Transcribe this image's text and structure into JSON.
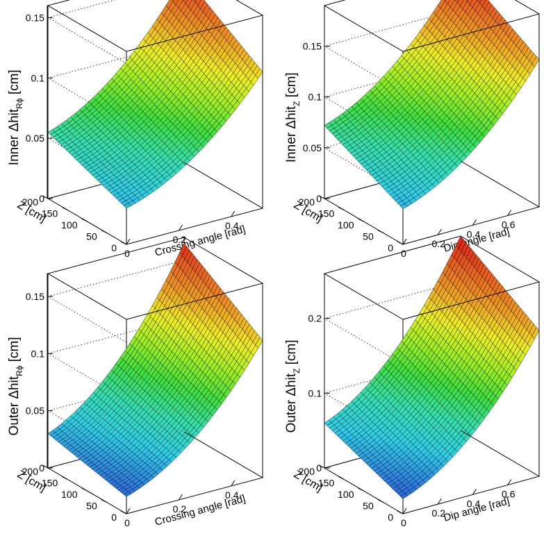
{
  "chart_data": [
    {
      "type": "surface",
      "title": "",
      "zlabel": {
        "prefix": "Inner ",
        "delta": "Δ",
        "base": "hit",
        "sub": "Rϕ",
        "unit": " [cm]"
      },
      "xlabel": "Crossing angle [rad]",
      "ylabel": "Z [cm]",
      "xlim": [
        0,
        0.52
      ],
      "ylim": [
        0,
        200
      ],
      "zlim": [
        0,
        0.16
      ],
      "xticks": [
        "0",
        "0.2",
        "0.4"
      ],
      "xtick_values": [
        0,
        0.2,
        0.4
      ],
      "yticks": [
        "0",
        "50",
        "100",
        "150",
        "200"
      ],
      "ytick_values": [
        0,
        50,
        100,
        150,
        200
      ],
      "zticks": [
        "0",
        "0.05",
        "0.1",
        "0.15"
      ],
      "ztick_values": [
        0,
        0.05,
        0.1,
        0.15
      ],
      "surface": {
        "x_range": [
          0,
          0.52
        ],
        "y_range": [
          0,
          200
        ],
        "nx": 30,
        "ny": 30,
        "corner_values": {
          "x0_y0": 0.03,
          "x0_y200": 0.055,
          "xmax_y0": 0.113,
          "xmax_y200": 0.155
        },
        "curvature_x": "quadratic"
      }
    },
    {
      "type": "surface",
      "title": "",
      "zlabel": {
        "prefix": "Inner ",
        "delta": "Δ",
        "base": "hit",
        "sub": "Z",
        "unit": " [cm]"
      },
      "xlabel": "Dip angle [rad]",
      "ylabel": "Z [cm]",
      "xlim": [
        0,
        0.78
      ],
      "ylim": [
        0,
        200
      ],
      "zlim": [
        0,
        0.19
      ],
      "xticks": [
        "0",
        "0.2",
        "0.4",
        "0.6"
      ],
      "xtick_values": [
        0,
        0.2,
        0.4,
        0.6
      ],
      "yticks": [
        "0",
        "50",
        "100",
        "150",
        "200"
      ],
      "ytick_values": [
        0,
        50,
        100,
        150,
        200
      ],
      "zticks": [
        "0",
        "0.05",
        "0.1",
        "0.15"
      ],
      "ztick_values": [
        0,
        0.05,
        0.1,
        0.15
      ],
      "surface": {
        "x_range": [
          0,
          0.78
        ],
        "y_range": [
          0,
          200
        ],
        "nx": 30,
        "ny": 30,
        "corner_values": {
          "x0_y0": 0.035,
          "x0_y200": 0.072,
          "xmax_y0": 0.145,
          "xmax_y200": 0.19
        },
        "curvature_x": "quadratic"
      }
    },
    {
      "type": "surface",
      "title": "",
      "zlabel": {
        "prefix": "Outer ",
        "delta": "Δ",
        "base": "hit",
        "sub": "Rϕ",
        "unit": " [cm]"
      },
      "xlabel": "Crossing angle [rad]",
      "ylabel": "Z [cm]",
      "xlim": [
        0,
        0.52
      ],
      "ylim": [
        0,
        200
      ],
      "zlim": [
        0,
        0.17
      ],
      "xticks": [
        "0",
        "0.2",
        "0.4"
      ],
      "xtick_values": [
        0,
        0.2,
        0.4
      ],
      "yticks": [
        "0",
        "50",
        "100",
        "150",
        "200"
      ],
      "ytick_values": [
        0,
        50,
        100,
        150,
        200
      ],
      "zticks": [
        "0",
        "0.05",
        "0.1",
        "0.15"
      ],
      "zticks_values_note": "",
      "ztick_values": [
        0,
        0.05,
        0.1,
        0.15
      ],
      "surface": {
        "x_range": [
          0,
          0.52
        ],
        "y_range": [
          0,
          200
        ],
        "nx": 30,
        "ny": 30,
        "corner_values": {
          "x0_y0": 0.015,
          "x0_y200": 0.03,
          "xmax_y0": 0.12,
          "xmax_y200": 0.165
        },
        "curvature_x": "quadratic"
      }
    },
    {
      "type": "surface",
      "title": "",
      "zlabel": {
        "prefix": "Outer ",
        "delta": "Δ",
        "base": "hit",
        "sub": "Z",
        "unit": " [cm]"
      },
      "xlabel": "Dip angle [rad]",
      "ylabel": "Z [cm]",
      "xlim": [
        0,
        0.78
      ],
      "ylim": [
        0,
        200
      ],
      "zlim": [
        0,
        0.26
      ],
      "xticks": [
        "0",
        "0.2",
        "0.4",
        "0.6"
      ],
      "xtick_values": [
        0,
        0.2,
        0.4,
        0.6
      ],
      "yticks": [
        "0",
        "50",
        "100",
        "150",
        "200"
      ],
      "ytick_values": [
        0,
        50,
        100,
        150,
        200
      ],
      "zticks": [
        "0",
        "0.1",
        "0.2"
      ],
      "ztick_values": [
        0,
        0.1,
        0.2
      ],
      "surface": {
        "x_range": [
          0,
          0.78
        ],
        "y_range": [
          0,
          200
        ],
        "nx": 30,
        "ny": 30,
        "corner_values": {
          "x0_y0": 0.02,
          "x0_y200": 0.06,
          "xmax_y0": 0.195,
          "xmax_y200": 0.26
        },
        "curvature_x": "quadratic"
      }
    }
  ],
  "palette": [
    "#1f3fd0",
    "#2e7be0",
    "#2fd0e8",
    "#36e0b0",
    "#3fe040",
    "#a0f020",
    "#f0f020",
    "#f0a020",
    "#e86020",
    "#d81818"
  ]
}
